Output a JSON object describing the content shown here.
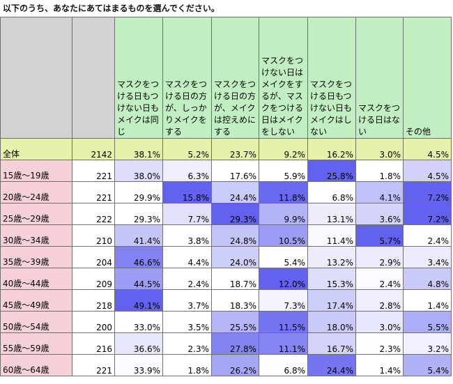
{
  "title": "以下のうち、あなたにあてはまるものを選んでください。",
  "headers": [
    "マスクをつける日もつけない日もメイクは同じ",
    "マスクをつける日の方が、しっかりメイクをする",
    "マスクをつける日の方が、メイクは控えめにする",
    "マスクをつけない日はメイクをするが、マスクをつける日はメイクをしない",
    "マスクをつける日もつけない日もメイクはしない",
    "マスクをつける日はない",
    "その他"
  ],
  "rows": [
    {
      "label": "全体",
      "n": "2142",
      "v": [
        "38.1%",
        "5.2%",
        "23.7%",
        "9.2%",
        "16.2%",
        "3.0%",
        "4.5%"
      ]
    },
    {
      "label": "15歳～19歳",
      "n": "221",
      "v": [
        "38.0%",
        "6.3%",
        "17.6%",
        "5.9%",
        "25.8%",
        "1.8%",
        "4.5%"
      ]
    },
    {
      "label": "20歳～24歳",
      "n": "221",
      "v": [
        "29.9%",
        "15.8%",
        "24.4%",
        "11.8%",
        "6.8%",
        "4.1%",
        "7.2%"
      ]
    },
    {
      "label": "25歳～29歳",
      "n": "222",
      "v": [
        "29.3%",
        "7.7%",
        "29.3%",
        "9.9%",
        "13.1%",
        "3.6%",
        "7.2%"
      ]
    },
    {
      "label": "30歳～34歳",
      "n": "210",
      "v": [
        "41.4%",
        "3.8%",
        "24.8%",
        "10.5%",
        "11.4%",
        "5.7%",
        "2.4%"
      ]
    },
    {
      "label": "35歳～39歳",
      "n": "204",
      "v": [
        "46.6%",
        "4.4%",
        "24.0%",
        "5.4%",
        "13.2%",
        "2.9%",
        "3.4%"
      ]
    },
    {
      "label": "40歳～44歳",
      "n": "209",
      "v": [
        "44.5%",
        "2.4%",
        "18.7%",
        "12.0%",
        "15.3%",
        "2.4%",
        "4.8%"
      ]
    },
    {
      "label": "45歳～49歳",
      "n": "218",
      "v": [
        "49.1%",
        "3.7%",
        "18.3%",
        "7.3%",
        "17.4%",
        "2.8%",
        "1.4%"
      ]
    },
    {
      "label": "50歳～54歳",
      "n": "200",
      "v": [
        "33.0%",
        "3.5%",
        "25.5%",
        "11.5%",
        "18.0%",
        "3.0%",
        "5.5%"
      ]
    },
    {
      "label": "55歳～59歳",
      "n": "216",
      "v": [
        "36.6%",
        "2.3%",
        "27.8%",
        "11.1%",
        "16.7%",
        "2.3%",
        "3.2%"
      ]
    },
    {
      "label": "60歳～64歳",
      "n": "221",
      "v": [
        "33.9%",
        "1.8%",
        "26.2%",
        "6.8%",
        "24.4%",
        "1.4%",
        "5.4%"
      ]
    }
  ]
}
